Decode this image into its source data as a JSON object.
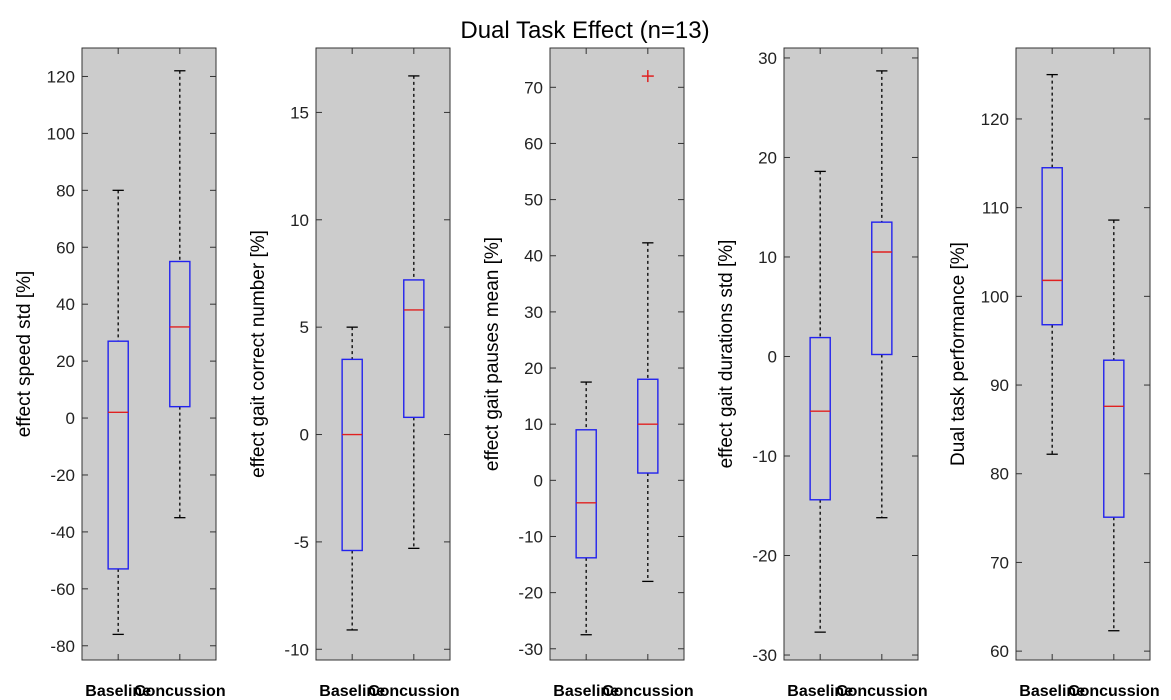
{
  "title": "Dual Task Effect (n=13)",
  "colors": {
    "panel_bg": "#cccccc",
    "box": "#2222ee",
    "median": "#e02020",
    "whisker": "#000000",
    "outlier": "#e02020"
  },
  "chart_data": [
    {
      "type": "box",
      "ylabel": "effect speed std [%]",
      "categories": [
        "Baseline",
        "Concussion"
      ],
      "ylim": [
        -85,
        130
      ],
      "yticks": [
        -80,
        -60,
        -40,
        -20,
        0,
        20,
        40,
        60,
        80,
        100,
        120
      ],
      "boxes": [
        {
          "whisker_low": -76,
          "q1": -53,
          "median": 2,
          "q3": 27,
          "whisker_high": 80,
          "outliers": []
        },
        {
          "whisker_low": -35,
          "q1": 4,
          "median": 32,
          "q3": 55,
          "whisker_high": 122,
          "outliers": []
        }
      ]
    },
    {
      "type": "box",
      "ylabel": "effect gait correct number [%]",
      "categories": [
        "Baseline",
        "Concussion"
      ],
      "ylim": [
        -10.5,
        18
      ],
      "yticks": [
        -10,
        -5,
        0,
        5,
        10,
        15
      ],
      "boxes": [
        {
          "whisker_low": -9.1,
          "q1": -5.4,
          "median": 0,
          "q3": 3.5,
          "whisker_high": 5,
          "outliers": []
        },
        {
          "whisker_low": -5.3,
          "q1": 0.8,
          "median": 5.8,
          "q3": 7.2,
          "whisker_high": 16.7,
          "outliers": []
        }
      ]
    },
    {
      "type": "box",
      "ylabel": "effect gait pauses mean [%]",
      "categories": [
        "Baseline",
        "Concussion"
      ],
      "ylim": [
        -32,
        77
      ],
      "yticks": [
        -30,
        -20,
        -10,
        0,
        10,
        20,
        30,
        40,
        50,
        60,
        70
      ],
      "boxes": [
        {
          "whisker_low": -27.5,
          "q1": -13.8,
          "median": -4,
          "q3": 9,
          "whisker_high": 17.5,
          "outliers": []
        },
        {
          "whisker_low": -18,
          "q1": 1.3,
          "median": 10,
          "q3": 18,
          "whisker_high": 42.3,
          "outliers": [
            72
          ]
        }
      ]
    },
    {
      "type": "box",
      "ylabel": "effect gait durations std [%]",
      "categories": [
        "Baseline",
        "Concussion"
      ],
      "ylim": [
        -30.5,
        31
      ],
      "yticks": [
        -30,
        -20,
        -10,
        0,
        10,
        20,
        30
      ],
      "boxes": [
        {
          "whisker_low": -27.7,
          "q1": -14.4,
          "median": -5.5,
          "q3": 1.9,
          "whisker_high": 18.6,
          "outliers": []
        },
        {
          "whisker_low": -16.2,
          "q1": 0.2,
          "median": 10.5,
          "q3": 13.5,
          "whisker_high": 28.7,
          "outliers": []
        }
      ]
    },
    {
      "type": "box",
      "ylabel": "Dual task performance [%]",
      "categories": [
        "Baseline",
        "Concussion"
      ],
      "ylim": [
        59,
        128
      ],
      "yticks": [
        60,
        70,
        80,
        90,
        100,
        110,
        120
      ],
      "boxes": [
        {
          "whisker_low": 82.2,
          "q1": 96.8,
          "median": 101.8,
          "q3": 114.5,
          "whisker_high": 125,
          "outliers": []
        },
        {
          "whisker_low": 62.3,
          "q1": 75.1,
          "median": 87.6,
          "q3": 92.8,
          "whisker_high": 108.6,
          "outliers": []
        }
      ]
    }
  ]
}
